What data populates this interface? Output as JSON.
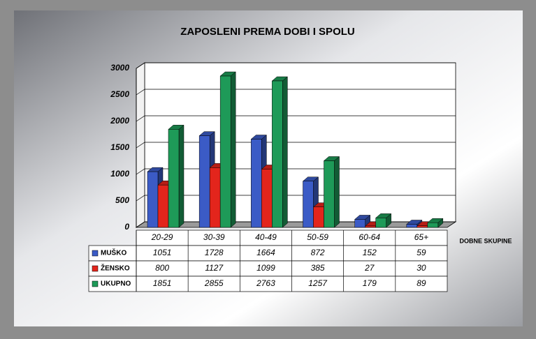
{
  "chart_data": {
    "type": "bar3d",
    "title": "ZAPOSLENI PREMA DOBI I SPOLU",
    "x_label": "DOBNE SKUPINE",
    "categories": [
      "20-29",
      "30-39",
      "40-49",
      "50-59",
      "60-64",
      "65+"
    ],
    "series": [
      {
        "name": "MUŠKO",
        "color": "#3b5bc6",
        "values": [
          1051,
          1728,
          1664,
          872,
          152,
          59
        ]
      },
      {
        "name": "ŽENSKO",
        "color": "#e3251c",
        "values": [
          800,
          1127,
          1099,
          385,
          27,
          30
        ]
      },
      {
        "name": "UKUPNO",
        "color": "#1e9a58",
        "values": [
          1851,
          2855,
          2763,
          1257,
          179,
          89
        ]
      }
    ],
    "ylim": [
      0,
      3000
    ],
    "yticks": [
      0,
      500,
      1000,
      1500,
      2000,
      2500,
      3000
    ],
    "grid": true
  }
}
